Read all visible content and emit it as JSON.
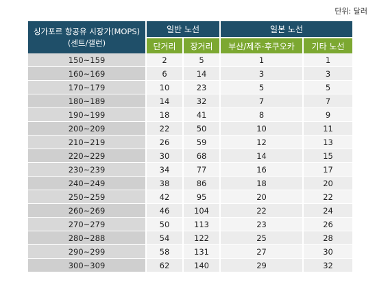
{
  "unit_label": "단위: 달러",
  "header": {
    "price_col_line1": "싱가포르 항공유 시장가(MOPS)",
    "price_col_line2": "(센트/갤런)",
    "group_general": "일반 노선",
    "group_japan": "일본 노선",
    "sub_short": "단거리",
    "sub_long": "장거리",
    "sub_busan_jeju": "부산/제주-후쿠오카",
    "sub_other": "기타 노선"
  },
  "rows": [
    {
      "range": "150~159",
      "short": "2",
      "long": "5",
      "busan_jeju": "1",
      "other": "1"
    },
    {
      "range": "160~169",
      "short": "6",
      "long": "14",
      "busan_jeju": "3",
      "other": "3"
    },
    {
      "range": "170~179",
      "short": "10",
      "long": "23",
      "busan_jeju": "5",
      "other": "5"
    },
    {
      "range": "180~189",
      "short": "14",
      "long": "32",
      "busan_jeju": "7",
      "other": "7"
    },
    {
      "range": "190~199",
      "short": "18",
      "long": "41",
      "busan_jeju": "8",
      "other": "9"
    },
    {
      "range": "200~209",
      "short": "22",
      "long": "50",
      "busan_jeju": "10",
      "other": "11"
    },
    {
      "range": "210~219",
      "short": "26",
      "long": "59",
      "busan_jeju": "12",
      "other": "13"
    },
    {
      "range": "220~229",
      "short": "30",
      "long": "68",
      "busan_jeju": "14",
      "other": "15"
    },
    {
      "range": "230~239",
      "short": "34",
      "long": "77",
      "busan_jeju": "16",
      "other": "17"
    },
    {
      "range": "240~249",
      "short": "38",
      "long": "86",
      "busan_jeju": "18",
      "other": "20"
    },
    {
      "range": "250~259",
      "short": "42",
      "long": "95",
      "busan_jeju": "20",
      "other": "22"
    },
    {
      "range": "260~269",
      "short": "46",
      "long": "104",
      "busan_jeju": "22",
      "other": "24"
    },
    {
      "range": "270~279",
      "short": "50",
      "long": "113",
      "busan_jeju": "23",
      "other": "26"
    },
    {
      "range": "280~288",
      "short": "54",
      "long": "122",
      "busan_jeju": "25",
      "other": "28"
    },
    {
      "range": "290~299",
      "short": "58",
      "long": "131",
      "busan_jeju": "27",
      "other": "30"
    },
    {
      "range": "300~309",
      "short": "62",
      "long": "140",
      "busan_jeju": "29",
      "other": "32"
    }
  ]
}
